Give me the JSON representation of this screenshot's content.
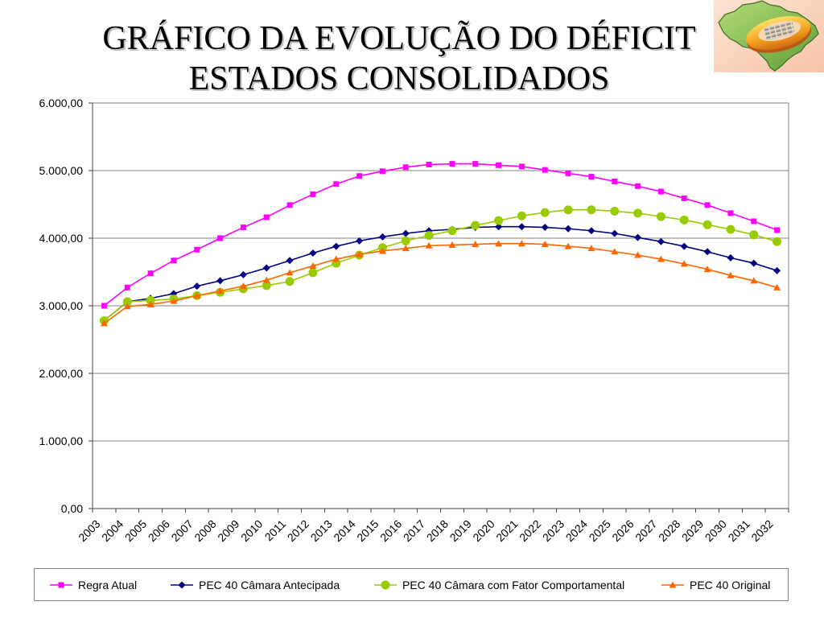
{
  "logo": {
    "icon": "brazil-map-emblem-icon"
  },
  "chart_data": {
    "type": "line",
    "title": [
      "GRÁFICO DA EVOLUÇÃO DO DÉFICIT",
      "ESTADOS CONSOLIDADOS"
    ],
    "categories": [
      "2003",
      "2004",
      "2005",
      "2006",
      "2007",
      "2008",
      "2009",
      "2010",
      "2011",
      "2012",
      "2013",
      "2014",
      "2015",
      "2016",
      "2017",
      "2018",
      "2019",
      "2020",
      "2021",
      "2022",
      "2023",
      "2024",
      "2025",
      "2026",
      "2027",
      "2028",
      "2029",
      "2030",
      "2031",
      "2032"
    ],
    "ylim": [
      0,
      6000
    ],
    "yticks": [
      0,
      1000,
      2000,
      3000,
      4000,
      5000,
      6000
    ],
    "ytick_labels": [
      "0,00",
      "1.000,00",
      "2.000,00",
      "3.000,00",
      "4.000,00",
      "5.000,00",
      "6.000,00"
    ],
    "grid": true,
    "legend": "bottom",
    "series": [
      {
        "name": "Regra Atual",
        "color": "#ff00ff",
        "marker": "square",
        "values": [
          3000,
          3270,
          3480,
          3670,
          3830,
          4000,
          4160,
          4310,
          4490,
          4650,
          4800,
          4920,
          4990,
          5050,
          5090,
          5100,
          5100,
          5080,
          5060,
          5010,
          4960,
          4910,
          4840,
          4770,
          4690,
          4590,
          4490,
          4370,
          4250,
          4120
        ]
      },
      {
        "name": "PEC 40 Câmara Antecipada",
        "color": "#000080",
        "marker": "diamond",
        "values": [
          2780,
          3060,
          3110,
          3180,
          3290,
          3370,
          3460,
          3560,
          3670,
          3780,
          3880,
          3960,
          4020,
          4070,
          4110,
          4130,
          4160,
          4170,
          4170,
          4160,
          4140,
          4110,
          4070,
          4010,
          3950,
          3880,
          3800,
          3710,
          3630,
          3520
        ]
      },
      {
        "name": "PEC 40 Câmara com Fator Comportamental",
        "color": "#99cc00",
        "marker": "circle",
        "values": [
          2780,
          3060,
          3080,
          3100,
          3150,
          3200,
          3250,
          3300,
          3360,
          3490,
          3630,
          3750,
          3860,
          3960,
          4040,
          4110,
          4190,
          4260,
          4330,
          4380,
          4420,
          4420,
          4400,
          4370,
          4320,
          4270,
          4200,
          4130,
          4050,
          3950
        ]
      },
      {
        "name": "PEC 40 Original",
        "color": "#ff6600",
        "marker": "triangle",
        "values": [
          2740,
          2990,
          3020,
          3070,
          3150,
          3220,
          3290,
          3380,
          3490,
          3590,
          3690,
          3760,
          3810,
          3850,
          3890,
          3900,
          3910,
          3920,
          3920,
          3910,
          3880,
          3850,
          3800,
          3750,
          3690,
          3620,
          3540,
          3450,
          3370,
          3270
        ]
      }
    ]
  }
}
